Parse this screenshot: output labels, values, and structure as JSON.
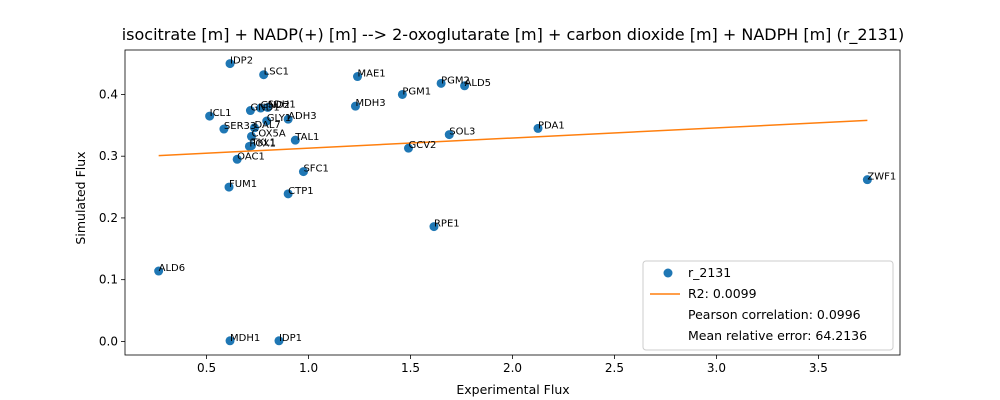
{
  "chart_data": {
    "type": "scatter",
    "title": "isocitrate [m] + NADP(+) [m] --> 2-oxoglutarate [m] + carbon dioxide [m] + NADPH [m] (r_2131)",
    "xlabel": "Experimental Flux",
    "ylabel": "Simulated Flux",
    "xlim": [
      0.1,
      3.9
    ],
    "ylim": [
      -0.022,
      0.472
    ],
    "xticks": [
      0.5,
      1.0,
      1.5,
      2.0,
      2.5,
      3.0,
      3.5
    ],
    "xtick_labels": [
      "0.5",
      "1.0",
      "1.5",
      "2.0",
      "2.5",
      "3.0",
      "3.5"
    ],
    "yticks": [
      0.0,
      0.1,
      0.2,
      0.3,
      0.4
    ],
    "ytick_labels": [
      "0.0",
      "0.1",
      "0.2",
      "0.3",
      "0.4"
    ],
    "grid": false,
    "legend_position": "bottom-right",
    "colors": {
      "points": "#1f77b4",
      "fit": "#ff7f0e"
    },
    "series": [
      {
        "name": "r_2131",
        "points": [
          {
            "label": "IDP2",
            "x": 0.615,
            "y": 0.45
          },
          {
            "label": "LSC1",
            "x": 0.78,
            "y": 0.432
          },
          {
            "label": "MAE1",
            "x": 1.24,
            "y": 0.429
          },
          {
            "label": "PGM2",
            "x": 1.65,
            "y": 0.418
          },
          {
            "label": "ALD5",
            "x": 1.765,
            "y": 0.414
          },
          {
            "label": "PGM1",
            "x": 1.46,
            "y": 0.4
          },
          {
            "label": "MDH3",
            "x": 1.23,
            "y": 0.381
          },
          {
            "label": "GND1",
            "x": 0.715,
            "y": 0.374
          },
          {
            "label": "GND2",
            "x": 0.765,
            "y": 0.378
          },
          {
            "label": "SDH1",
            "x": 0.8,
            "y": 0.379
          },
          {
            "label": "ICL1",
            "x": 0.515,
            "y": 0.365
          },
          {
            "label": "ADH3",
            "x": 0.9,
            "y": 0.36
          },
          {
            "label": "GLY1",
            "x": 0.795,
            "y": 0.357
          },
          {
            "label": "DAL7",
            "x": 0.735,
            "y": 0.346
          },
          {
            "label": "SER33",
            "x": 0.585,
            "y": 0.344
          },
          {
            "label": "PDA1",
            "x": 2.125,
            "y": 0.345
          },
          {
            "label": "SOL3",
            "x": 1.69,
            "y": 0.335
          },
          {
            "label": "COX5A",
            "x": 0.72,
            "y": 0.332
          },
          {
            "label": "TAL1",
            "x": 0.935,
            "y": 0.326
          },
          {
            "label": "TKL1",
            "x": 0.72,
            "y": 0.317
          },
          {
            "label": "POX1",
            "x": 0.71,
            "y": 0.316
          },
          {
            "label": "GCV2",
            "x": 1.49,
            "y": 0.313
          },
          {
            "label": "OAC1",
            "x": 0.65,
            "y": 0.295
          },
          {
            "label": "SFC1",
            "x": 0.975,
            "y": 0.275
          },
          {
            "label": "ZWF1",
            "x": 3.74,
            "y": 0.262
          },
          {
            "label": "FUM1",
            "x": 0.61,
            "y": 0.25
          },
          {
            "label": "CTP1",
            "x": 0.9,
            "y": 0.239
          },
          {
            "label": "RPE1",
            "x": 1.615,
            "y": 0.186
          },
          {
            "label": "ALD6",
            "x": 0.265,
            "y": 0.114
          },
          {
            "label": "MDH1",
            "x": 0.615,
            "y": 0.001
          },
          {
            "label": "IDP1",
            "x": 0.855,
            "y": 0.001
          }
        ]
      },
      {
        "name": "R2: 0.0099",
        "type": "line",
        "x": [
          0.265,
          3.74
        ],
        "y": [
          0.301,
          0.358
        ]
      }
    ],
    "legend": {
      "entries": [
        "r_2131",
        "R2: 0.0099",
        "Pearson correlation: 0.0996",
        "Mean relative error: 64.2136"
      ]
    }
  }
}
